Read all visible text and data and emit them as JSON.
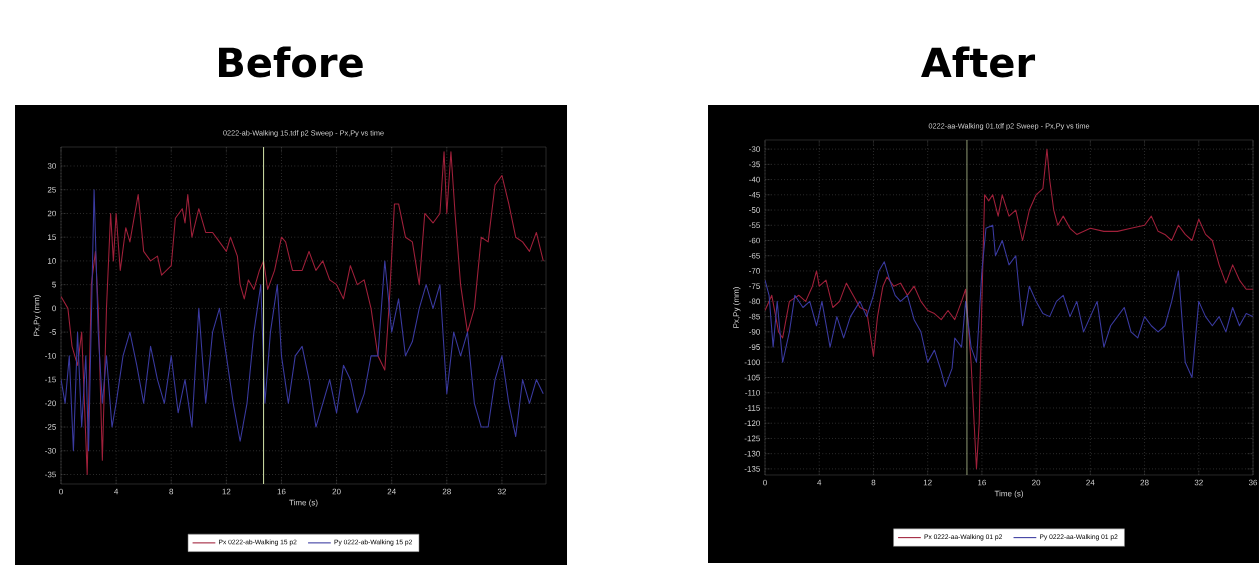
{
  "chart_data": [
    {
      "type": "line",
      "title": "Before",
      "subtitle": "0222-ab-Walking 15.tdf p2  Sweep - Px,Py vs time",
      "xlabel": "Time (s)",
      "ylabel": "Px,Py (mm)",
      "xlim": [
        0,
        35.2
      ],
      "ylim": [
        -37,
        34
      ],
      "xticks": [
        0,
        4,
        8,
        12,
        16,
        20,
        24,
        28,
        32
      ],
      "yticks": [
        -35,
        -30,
        -25,
        -20,
        -15,
        -10,
        -5,
        0,
        5,
        10,
        15,
        20,
        25,
        30
      ],
      "grid": true,
      "legend": "bottom",
      "ref_lines": [
        {
          "axis": "x",
          "value": 14.7,
          "color": "#c8d8a0"
        }
      ],
      "series": [
        {
          "name": "Px 0222-ab-Walking 15 p2",
          "color": "#a0203a",
          "x": [
            0,
            0.5,
            0.8,
            1.2,
            1.5,
            1.9,
            2.2,
            2.5,
            2.7,
            3.0,
            3.3,
            3.6,
            3.8,
            4.0,
            4.3,
            4.7,
            5.0,
            5.6,
            6.0,
            6.5,
            7.0,
            7.3,
            8.0,
            8.3,
            8.8,
            9.0,
            9.2,
            9.5,
            10.0,
            10.5,
            11.0,
            11.5,
            12.0,
            12.3,
            12.8,
            13.0,
            13.3,
            13.6,
            14.0,
            14.4,
            14.7,
            15.0,
            15.5,
            16.0,
            16.3,
            16.8,
            17.5,
            18.0,
            18.5,
            19.0,
            19.5,
            20.0,
            20.5,
            21.0,
            21.5,
            22.0,
            22.5,
            23.0,
            23.5,
            23.8,
            24.2,
            24.5,
            25.0,
            25.5,
            26.0,
            26.4,
            27.0,
            27.5,
            27.8,
            28.0,
            28.3,
            28.6,
            29.0,
            29.5,
            30.0,
            30.5,
            31.0,
            31.5,
            32.0,
            32.5,
            33.0,
            33.5,
            34.0,
            34.5,
            35.0
          ],
          "values": [
            2.5,
            0,
            -8,
            -12,
            -5,
            -35,
            5,
            12,
            0,
            -32,
            0,
            20,
            10,
            20,
            8,
            17,
            14,
            24,
            12,
            10,
            11,
            7,
            9,
            19,
            21,
            18,
            24,
            15,
            21,
            16,
            16,
            14,
            12,
            15,
            11,
            5,
            2,
            6,
            4,
            8,
            10,
            4,
            8,
            15,
            14,
            8,
            8,
            12,
            8,
            10,
            6,
            5,
            2,
            9,
            5,
            6,
            0,
            -10,
            -13,
            0,
            22,
            22,
            15,
            14,
            5,
            20,
            18,
            20,
            33,
            20,
            33,
            20,
            5,
            -5,
            0,
            15,
            14,
            26,
            28,
            22,
            15,
            14,
            12,
            16,
            10
          ]
        },
        {
          "name": "Py 0222-ab-Walking 15 p2",
          "color": "#3a3aa0",
          "x": [
            0,
            0.3,
            0.6,
            0.9,
            1.2,
            1.5,
            1.8,
            2.0,
            2.4,
            2.7,
            3.0,
            3.3,
            3.7,
            4.0,
            4.5,
            5.0,
            5.5,
            6.0,
            6.5,
            7.0,
            7.5,
            8.0,
            8.5,
            9.0,
            9.5,
            10.0,
            10.5,
            11.0,
            11.5,
            12.0,
            12.5,
            13.0,
            13.5,
            14.0,
            14.5,
            14.8,
            15.2,
            15.7,
            16.0,
            16.5,
            17.0,
            17.5,
            18.0,
            18.5,
            19.0,
            19.5,
            20.0,
            20.5,
            21.0,
            21.5,
            22.0,
            22.5,
            23.0,
            23.5,
            24.0,
            24.5,
            25.0,
            25.5,
            26.0,
            26.5,
            27.0,
            27.5,
            28.0,
            28.5,
            29.0,
            29.5,
            30.0,
            30.5,
            31.0,
            31.5,
            32.0,
            32.5,
            33.0,
            33.5,
            34.0,
            34.5,
            35.0
          ],
          "values": [
            -15,
            -20,
            -10,
            -30,
            -5,
            -25,
            -10,
            -30,
            25,
            -5,
            -20,
            -10,
            -25,
            -20,
            -10,
            -5,
            -12,
            -20,
            -8,
            -15,
            -20,
            -10,
            -22,
            -15,
            -25,
            0,
            -20,
            -5,
            0,
            -10,
            -20,
            -28,
            -20,
            -5,
            5,
            -20,
            -5,
            5,
            -10,
            -20,
            -10,
            -8,
            -15,
            -25,
            -20,
            -15,
            -22,
            -12,
            -15,
            -22,
            -18,
            -10,
            -10,
            10,
            -5,
            2,
            -10,
            -7,
            0,
            5,
            0,
            5,
            -18,
            -5,
            -10,
            -5,
            -20,
            -25,
            -25,
            -15,
            -10,
            -20,
            -27,
            -15,
            -20,
            -15,
            -18
          ]
        }
      ]
    },
    {
      "type": "line",
      "title": "After",
      "subtitle": "0222-aa-Walking 01.tdf p2  Sweep - Px,Py vs time",
      "xlabel": "Time (s)",
      "ylabel": "Px,Py (mm)",
      "xlim": [
        0,
        36
      ],
      "ylim": [
        -137,
        -27
      ],
      "xticks": [
        0,
        4,
        8,
        12,
        16,
        20,
        24,
        28,
        32,
        36
      ],
      "yticks": [
        -135,
        -130,
        -125,
        -120,
        -115,
        -110,
        -105,
        -100,
        -95,
        -90,
        -85,
        -80,
        -75,
        -70,
        -65,
        -60,
        -55,
        -50,
        -45,
        -40,
        -35,
        -30
      ],
      "grid": true,
      "legend": "bottom",
      "ref_lines": [
        {
          "axis": "x",
          "value": 14.9,
          "color": "#c8d8a0"
        }
      ],
      "series": [
        {
          "name": "Px 0222-aa-Walking 01 p2",
          "color": "#a0203a",
          "x": [
            0,
            0.5,
            1.0,
            1.3,
            1.8,
            2.5,
            3.0,
            3.5,
            3.8,
            4.0,
            4.5,
            5.0,
            5.5,
            6.0,
            6.5,
            7.0,
            7.5,
            8.0,
            8.3,
            8.7,
            9.0,
            9.5,
            10.0,
            10.5,
            11.0,
            11.5,
            12.0,
            12.5,
            13.0,
            13.5,
            14.0,
            14.5,
            14.8,
            15.2,
            15.6,
            15.8,
            16.0,
            16.2,
            16.5,
            16.8,
            17.2,
            17.5,
            18.0,
            18.5,
            19.0,
            19.5,
            20.0,
            20.5,
            20.8,
            21.0,
            21.3,
            21.6,
            22.0,
            22.5,
            23.0,
            24.0,
            25.0,
            26.0,
            27.0,
            28.0,
            28.5,
            29.0,
            29.5,
            30.0,
            30.5,
            31.0,
            31.5,
            32.0,
            32.5,
            33.0,
            33.5,
            34.0,
            34.5,
            35.0,
            35.5,
            36.0
          ],
          "values": [
            -83,
            -78,
            -90,
            -92,
            -80,
            -78,
            -80,
            -75,
            -70,
            -75,
            -73,
            -82,
            -80,
            -74,
            -78,
            -82,
            -83,
            -98,
            -85,
            -75,
            -72,
            -75,
            -74,
            -78,
            -75,
            -80,
            -83,
            -84,
            -86,
            -83,
            -86,
            -80,
            -76,
            -100,
            -135,
            -120,
            -80,
            -45,
            -47,
            -45,
            -52,
            -45,
            -52,
            -50,
            -60,
            -50,
            -45,
            -43,
            -30,
            -40,
            -50,
            -55,
            -52,
            -56,
            -58,
            -56,
            -57,
            -57,
            -56,
            -55,
            -52,
            -57,
            -58,
            -60,
            -55,
            -58,
            -60,
            -53,
            -58,
            -60,
            -68,
            -74,
            -68,
            -73,
            -76,
            -76
          ]
        },
        {
          "name": "Py 0222-aa-Walking 01 p2",
          "color": "#3a3aa0",
          "x": [
            0,
            0.3,
            0.6,
            0.9,
            1.3,
            1.8,
            2.2,
            2.8,
            3.3,
            3.8,
            4.2,
            4.8,
            5.3,
            5.8,
            6.3,
            7.0,
            7.5,
            8.0,
            8.4,
            8.8,
            9.2,
            9.6,
            10.0,
            10.5,
            11.0,
            11.5,
            12.0,
            12.5,
            13.0,
            13.3,
            13.8,
            14.0,
            14.5,
            14.8,
            15.2,
            15.6,
            16.0,
            16.3,
            16.8,
            17.0,
            17.5,
            18.0,
            18.5,
            19.0,
            19.5,
            20.0,
            20.5,
            21.0,
            21.5,
            22.0,
            22.5,
            23.0,
            23.5,
            24.0,
            24.5,
            25.0,
            25.5,
            26.0,
            26.5,
            27.0,
            27.5,
            28.0,
            28.5,
            29.0,
            29.5,
            30.0,
            30.5,
            31.0,
            31.5,
            32.0,
            32.5,
            33.0,
            33.5,
            34.0,
            34.5,
            35.0,
            35.5,
            36.0
          ],
          "values": [
            -73,
            -78,
            -95,
            -80,
            -100,
            -90,
            -78,
            -82,
            -80,
            -88,
            -80,
            -95,
            -85,
            -92,
            -85,
            -80,
            -85,
            -78,
            -70,
            -67,
            -73,
            -78,
            -80,
            -78,
            -86,
            -90,
            -100,
            -96,
            -103,
            -108,
            -102,
            -92,
            -95,
            -80,
            -95,
            -100,
            -70,
            -56,
            -55,
            -65,
            -60,
            -68,
            -65,
            -88,
            -75,
            -80,
            -84,
            -85,
            -80,
            -78,
            -85,
            -80,
            -90,
            -85,
            -80,
            -95,
            -88,
            -85,
            -82,
            -90,
            -92,
            -85,
            -88,
            -90,
            -88,
            -80,
            -70,
            -100,
            -105,
            -80,
            -85,
            -88,
            -85,
            -90,
            -82,
            -88,
            -84,
            -85
          ]
        }
      ]
    }
  ]
}
